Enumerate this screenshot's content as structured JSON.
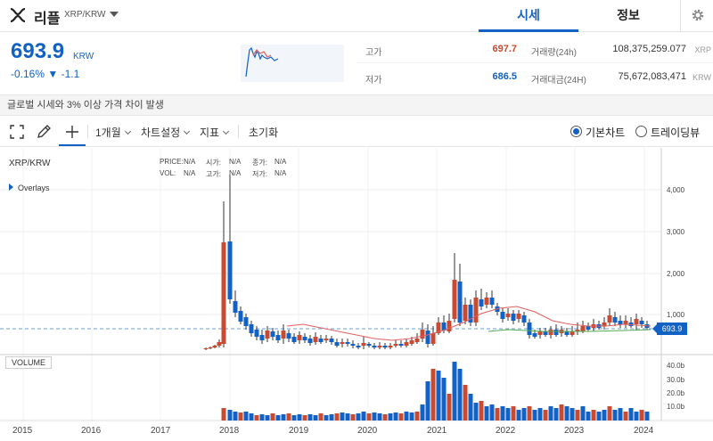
{
  "header": {
    "coin_name": "리플",
    "pair": "XRP/KRW",
    "tabs": [
      {
        "label": "시세"
      },
      {
        "label": "정보"
      }
    ]
  },
  "price": {
    "current": "693.9",
    "unit": "KRW",
    "change": "-0.16% ▼ -1.1"
  },
  "stats": {
    "high_label": "고가",
    "high_value": "697.7",
    "low_label": "저가",
    "low_value": "686.5",
    "volume_label": "거래량(24h)",
    "volume_value": "108,375,259.077",
    "volume_unit": "XRP",
    "amount_label": "거래대금(24H)",
    "amount_value": "75,672,083,471",
    "amount_unit": "KRW"
  },
  "notice": "글로벌 시세와 3% 이상 가격 차이 발생",
  "toolbar": {
    "period": "1개월",
    "chart_settings": "차트설정",
    "indicators": "지표",
    "reset": "초기화",
    "basic_chart": "기본차트",
    "trading_view": "트레이딩뷰"
  },
  "chart": {
    "pair": "XRP/KRW",
    "overlays": "Overlays",
    "ohlc": {
      "price": "PRICE:",
      "price_v": "N/A",
      "open": "시가:",
      "open_v": "N/A",
      "close": "종가:",
      "close_v": "N/A",
      "vol": "VOL:",
      "vol_v": "N/A",
      "high": "고가:",
      "high_v": "N/A",
      "low": "저가:",
      "low_v": "N/A"
    },
    "volume_label": "VOLUME",
    "price_tag": "693.9",
    "y_ticks": [
      "4,000",
      "3,000",
      "2,000",
      "1,000"
    ],
    "vol_ticks": [
      "40.0b",
      "30.0b",
      "20.0b",
      "10.0b"
    ],
    "x_ticks": [
      "2015",
      "2016",
      "2017",
      "2018",
      "2019",
      "2020",
      "2021",
      "2022",
      "2023",
      "2024"
    ]
  },
  "colors": {
    "up": "#c84a31",
    "down": "#1261c4",
    "ma1": "#e06060",
    "ma2": "#55aa55"
  }
}
